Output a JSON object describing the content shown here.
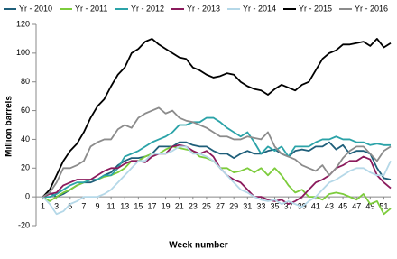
{
  "chart_data": {
    "type": "line",
    "x_label": "Week number",
    "y_label": "Million barrels",
    "x": [
      1,
      2,
      3,
      4,
      5,
      6,
      7,
      8,
      9,
      10,
      11,
      12,
      13,
      14,
      15,
      16,
      17,
      18,
      19,
      20,
      21,
      22,
      23,
      24,
      25,
      26,
      27,
      28,
      29,
      30,
      31,
      32,
      33,
      34,
      35,
      36,
      37,
      38,
      39,
      40,
      41,
      42,
      43,
      44,
      45,
      46,
      47,
      48,
      49,
      50,
      51,
      52
    ],
    "xlim": [
      0,
      52
    ],
    "xticks": [
      1,
      3,
      5,
      7,
      9,
      11,
      13,
      15,
      17,
      19,
      21,
      23,
      25,
      27,
      29,
      31,
      33,
      35,
      37,
      39,
      41,
      43,
      45,
      47,
      49,
      51
    ],
    "ylim": [
      -20,
      120
    ],
    "yticks": [
      -20,
      0,
      20,
      40,
      60,
      80,
      100,
      120
    ],
    "grid": false,
    "legend": "top",
    "series": [
      {
        "name": "Yr - 2010",
        "color": "#1f5f7a",
        "values": [
          0,
          3,
          0,
          2,
          5,
          8,
          10,
          10,
          12,
          15,
          17,
          22,
          25,
          27,
          27,
          28,
          30,
          35,
          35,
          35,
          38,
          38,
          36,
          35,
          35,
          32,
          30,
          30,
          27,
          30,
          32,
          30,
          30,
          32,
          33,
          30,
          28,
          32,
          33,
          32,
          35,
          35,
          38,
          33,
          36,
          30,
          32,
          32,
          30,
          20,
          13,
          12
        ]
      },
      {
        "name": "Yr - 2011",
        "color": "#7dcc3c",
        "values": [
          0,
          -3,
          0,
          3,
          5,
          8,
          10,
          12,
          12,
          14,
          15,
          17,
          20,
          25,
          25,
          28,
          30,
          30,
          33,
          35,
          34,
          33,
          32,
          28,
          27,
          25,
          20,
          20,
          17,
          18,
          20,
          17,
          20,
          15,
          20,
          15,
          8,
          3,
          5,
          0,
          0,
          -2,
          2,
          3,
          2,
          0,
          -2,
          2,
          -5,
          -3,
          -12,
          -8
        ]
      },
      {
        "name": "Yr - 2012",
        "color": "#2ba3a8",
        "values": [
          0,
          0,
          2,
          5,
          8,
          10,
          10,
          12,
          12,
          15,
          15,
          20,
          28,
          30,
          32,
          35,
          38,
          40,
          42,
          45,
          50,
          50,
          52,
          52,
          55,
          55,
          52,
          48,
          45,
          42,
          45,
          38,
          30,
          35,
          32,
          35,
          28,
          35,
          35,
          35,
          38,
          40,
          40,
          42,
          40,
          40,
          38,
          38,
          36,
          37,
          36,
          36
        ]
      },
      {
        "name": "Yr - 2013",
        "color": "#8b1a5c",
        "values": [
          0,
          2,
          3,
          8,
          10,
          12,
          12,
          12,
          15,
          18,
          20,
          20,
          23,
          25,
          25,
          24,
          28,
          30,
          30,
          35,
          36,
          35,
          32,
          30,
          32,
          28,
          20,
          15,
          12,
          10,
          5,
          0,
          0,
          -2,
          -3,
          -2,
          -5,
          -3,
          0,
          5,
          10,
          12,
          15,
          20,
          22,
          25,
          25,
          28,
          26,
          15,
          10,
          6
        ]
      },
      {
        "name": "Yr - 2014",
        "color": "#b5d8e8",
        "values": [
          0,
          -5,
          -12,
          -10,
          -5,
          -3,
          0,
          0,
          0,
          2,
          5,
          10,
          15,
          20,
          25,
          25,
          30,
          30,
          30,
          32,
          35,
          35,
          30,
          30,
          28,
          25,
          20,
          15,
          10,
          5,
          3,
          0,
          -2,
          -3,
          -2,
          -5,
          -3,
          -5,
          -7,
          -3,
          0,
          5,
          10,
          12,
          15,
          18,
          20,
          20,
          17,
          15,
          15,
          25
        ]
      },
      {
        "name": "Yr - 2015",
        "color": "#000000",
        "values": [
          0,
          5,
          15,
          25,
          32,
          37,
          45,
          55,
          63,
          68,
          77,
          85,
          90,
          100,
          103,
          108,
          110,
          106,
          103,
          100,
          97,
          96,
          90,
          88,
          85,
          83,
          84,
          86,
          85,
          80,
          77,
          75,
          74,
          71,
          75,
          78,
          76,
          74,
          78,
          80,
          88,
          96,
          100,
          102,
          106,
          106,
          107,
          108,
          105,
          110,
          104,
          107
        ]
      },
      {
        "name": "Yr - 2016",
        "color": "#8c8c8c",
        "values": [
          0,
          3,
          10,
          20,
          20,
          22,
          25,
          35,
          38,
          40,
          40,
          47,
          50,
          48,
          55,
          58,
          60,
          62,
          58,
          60,
          55,
          53,
          52,
          50,
          48,
          45,
          42,
          42,
          40,
          40,
          42,
          41,
          40,
          45,
          35,
          30,
          28,
          26,
          22,
          20,
          18,
          22,
          15,
          20,
          27,
          32,
          35,
          35,
          30,
          25,
          32,
          35
        ]
      }
    ]
  }
}
